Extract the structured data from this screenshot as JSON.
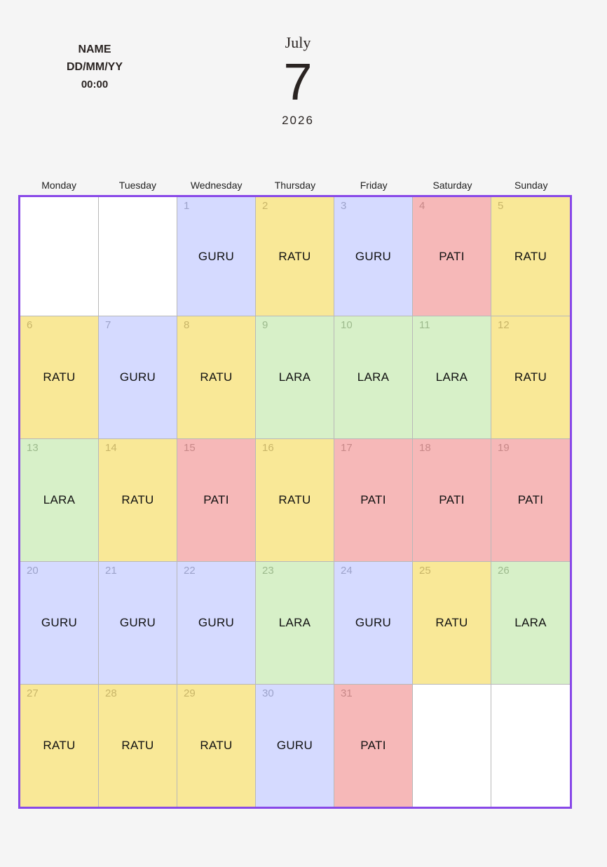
{
  "header": {
    "name": "NAME",
    "date_format": "DD/MM/YY",
    "time": "00:00",
    "month": "July",
    "day": "7",
    "year": "2026"
  },
  "weekdays": [
    "Monday",
    "Tuesday",
    "Wednesday",
    "Thursday",
    "Friday",
    "Saturday",
    "Sunday"
  ],
  "colors": {
    "GURU": "#d5daff",
    "RATU": "#f9e897",
    "PATI": "#f6b8b8",
    "LARA": "#d7f0c8",
    "border": "#8848e8"
  },
  "weeks": [
    [
      {
        "day": "",
        "label": ""
      },
      {
        "day": "",
        "label": ""
      },
      {
        "day": "1",
        "label": "GURU"
      },
      {
        "day": "2",
        "label": "RATU"
      },
      {
        "day": "3",
        "label": "GURU"
      },
      {
        "day": "4",
        "label": "PATI"
      },
      {
        "day": "5",
        "label": "RATU"
      }
    ],
    [
      {
        "day": "6",
        "label": "RATU"
      },
      {
        "day": "7",
        "label": "GURU"
      },
      {
        "day": "8",
        "label": "RATU"
      },
      {
        "day": "9",
        "label": "LARA"
      },
      {
        "day": "10",
        "label": "LARA"
      },
      {
        "day": "11",
        "label": "LARA"
      },
      {
        "day": "12",
        "label": "RATU"
      }
    ],
    [
      {
        "day": "13",
        "label": "LARA"
      },
      {
        "day": "14",
        "label": "RATU"
      },
      {
        "day": "15",
        "label": "PATI"
      },
      {
        "day": "16",
        "label": "RATU"
      },
      {
        "day": "17",
        "label": "PATI"
      },
      {
        "day": "18",
        "label": "PATI"
      },
      {
        "day": "19",
        "label": "PATI"
      }
    ],
    [
      {
        "day": "20",
        "label": "GURU"
      },
      {
        "day": "21",
        "label": "GURU"
      },
      {
        "day": "22",
        "label": "GURU"
      },
      {
        "day": "23",
        "label": "LARA"
      },
      {
        "day": "24",
        "label": "GURU"
      },
      {
        "day": "25",
        "label": "RATU"
      },
      {
        "day": "26",
        "label": "LARA"
      }
    ],
    [
      {
        "day": "27",
        "label": "RATU"
      },
      {
        "day": "28",
        "label": "RATU"
      },
      {
        "day": "29",
        "label": "RATU"
      },
      {
        "day": "30",
        "label": "GURU"
      },
      {
        "day": "31",
        "label": "PATI"
      },
      {
        "day": "",
        "label": ""
      },
      {
        "day": "",
        "label": ""
      }
    ]
  ]
}
